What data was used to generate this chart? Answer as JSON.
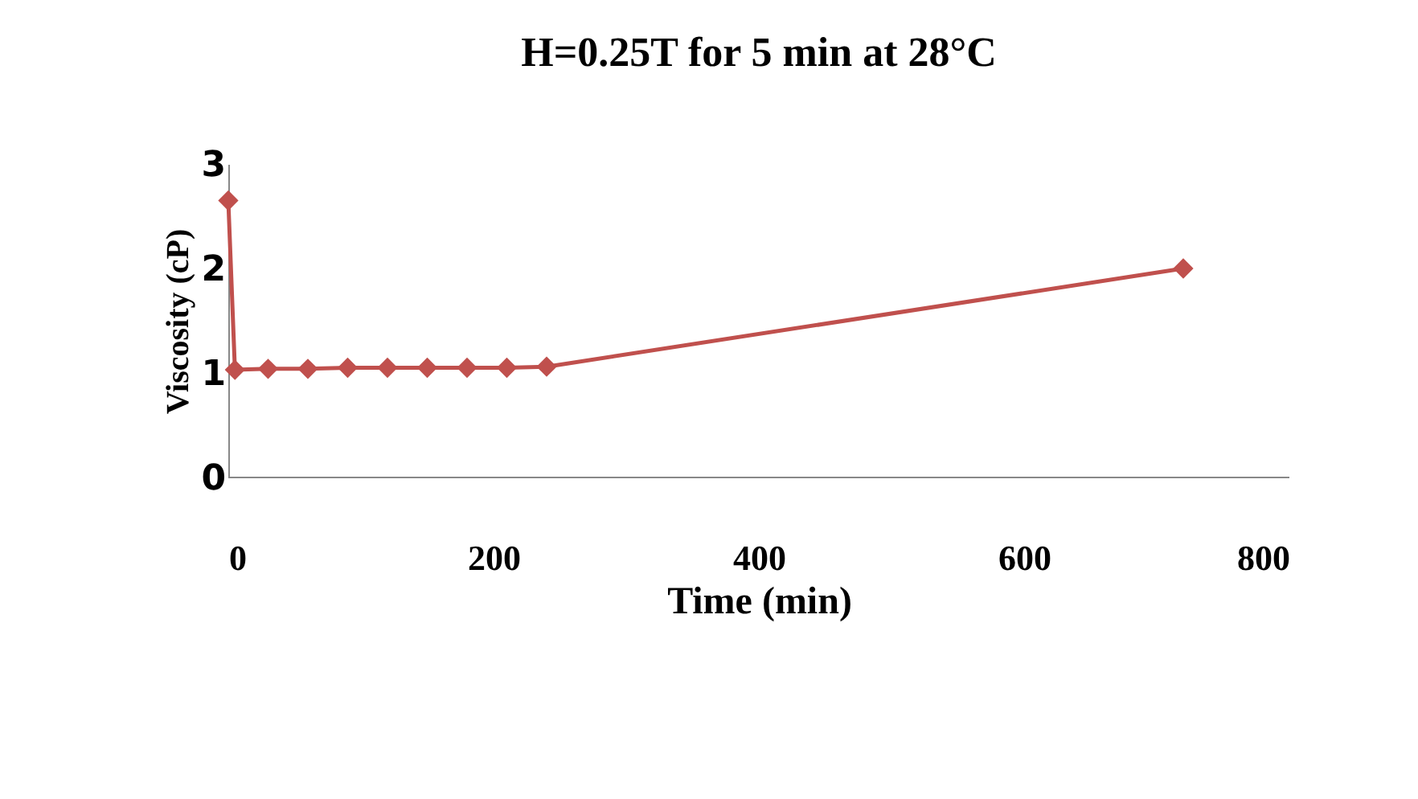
{
  "chart_data": {
    "type": "line",
    "title": "H=0.25T for 5 min at 28°C",
    "xlabel": "Time (min)",
    "ylabel": "Viscosity (cP)",
    "x": [
      0,
      5,
      30,
      60,
      90,
      120,
      150,
      180,
      210,
      240,
      720
    ],
    "series": [
      {
        "color": "#c0504d",
        "values": [
          2.65,
          1.03,
          1.04,
          1.04,
          1.05,
          1.05,
          1.05,
          1.05,
          1.05,
          1.06,
          2.0
        ]
      }
    ],
    "xlim": [
      0,
      800
    ],
    "xticks": [
      0,
      200,
      400,
      600,
      800
    ],
    "ylim": [
      0,
      3
    ],
    "yticks": [
      {
        "value": 0,
        "label": "0"
      },
      {
        "value": 1,
        "label": "1"
      },
      {
        "value": 2,
        "label": "2"
      },
      {
        "value": 3,
        "label": "3"
      }
    ],
    "grid": false,
    "legend": false,
    "marker": "diamond",
    "line_style": "solid"
  }
}
